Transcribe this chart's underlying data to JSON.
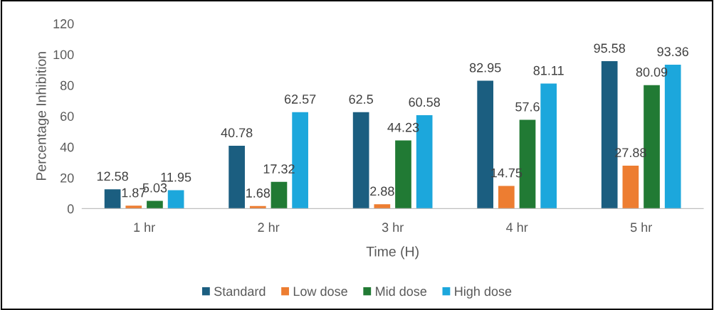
{
  "chart_data": {
    "type": "bar",
    "xlabel": "Time (H)",
    "ylabel": "Percentage Inhibition",
    "categories": [
      "1 hr",
      "2 hr",
      "3 hr",
      "4 hr",
      "5 hr"
    ],
    "series": [
      {
        "name": "Standard",
        "color": "#1b5e80",
        "values": [
          12.58,
          40.78,
          62.5,
          82.95,
          95.58
        ]
      },
      {
        "name": "Low dose",
        "color": "#ed7d31",
        "values": [
          1.87,
          1.68,
          2.88,
          14.75,
          27.88
        ]
      },
      {
        "name": "Mid dose",
        "color": "#217a34",
        "values": [
          5.03,
          17.32,
          44.23,
          57.6,
          80.09
        ]
      },
      {
        "name": "High dose",
        "color": "#1ca7dc",
        "values": [
          11.95,
          62.57,
          60.58,
          81.11,
          93.36
        ]
      }
    ],
    "ylim": [
      0,
      120
    ],
    "yticks": [
      0,
      20,
      40,
      60,
      80,
      100,
      120
    ],
    "grid": false,
    "legend": "bottom",
    "data_labels": true
  }
}
